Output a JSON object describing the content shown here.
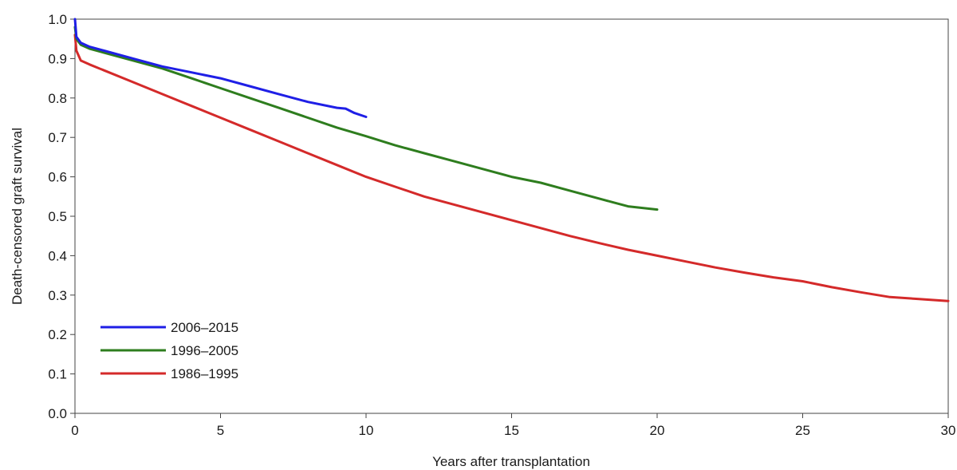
{
  "chart_data": {
    "type": "line",
    "title": "",
    "xlabel": "Years after transplantation",
    "ylabel": "Death-censored graft survival",
    "xlim": [
      0,
      30
    ],
    "ylim": [
      0.0,
      1.0
    ],
    "x_ticks": [
      0,
      5,
      10,
      15,
      20,
      25,
      30
    ],
    "x_tick_labels": [
      "0",
      "5",
      "10",
      "15",
      "20",
      "25",
      "30"
    ],
    "y_ticks": [
      0.0,
      0.1,
      0.2,
      0.3,
      0.4,
      0.5,
      0.6,
      0.7,
      0.8,
      0.9,
      1.0
    ],
    "y_tick_labels": [
      "0.0",
      "0.1",
      "0.2",
      "0.3",
      "0.4",
      "0.5",
      "0.6",
      "0.7",
      "0.8",
      "0.9",
      "1.0"
    ],
    "grid": false,
    "legend_position": "bottom-left",
    "series": [
      {
        "name": "2006–2015",
        "color": "#1f1fe6",
        "x": [
          0,
          0.05,
          0.2,
          0.5,
          1,
          2,
          3,
          4,
          5,
          6,
          7,
          8,
          9,
          9.3,
          9.6,
          10
        ],
        "y": [
          1.0,
          0.955,
          0.94,
          0.93,
          0.92,
          0.9,
          0.88,
          0.865,
          0.85,
          0.83,
          0.81,
          0.79,
          0.775,
          0.773,
          0.762,
          0.752
        ]
      },
      {
        "name": "1996–2005",
        "color": "#2e7d1e",
        "x": [
          0,
          0.05,
          0.2,
          0.5,
          1,
          2,
          3,
          4,
          5,
          6,
          7,
          8,
          9,
          10,
          11,
          12,
          13,
          14,
          15,
          16,
          17,
          18,
          19,
          20
        ],
        "y": [
          0.98,
          0.95,
          0.935,
          0.925,
          0.915,
          0.895,
          0.875,
          0.85,
          0.825,
          0.8,
          0.775,
          0.75,
          0.725,
          0.703,
          0.68,
          0.66,
          0.64,
          0.62,
          0.6,
          0.585,
          0.565,
          0.545,
          0.525,
          0.517
        ]
      },
      {
        "name": "1986–1995",
        "color": "#d42a2a",
        "x": [
          0,
          0.05,
          0.2,
          0.5,
          1,
          2,
          3,
          4,
          5,
          6,
          7,
          8,
          9,
          10,
          11,
          12,
          13,
          14,
          15,
          16,
          17,
          18,
          19,
          20,
          21,
          22,
          23,
          24,
          25,
          26,
          27,
          28,
          29,
          30
        ],
        "y": [
          0.96,
          0.92,
          0.895,
          0.885,
          0.87,
          0.84,
          0.81,
          0.78,
          0.75,
          0.72,
          0.69,
          0.66,
          0.63,
          0.6,
          0.575,
          0.55,
          0.53,
          0.51,
          0.49,
          0.47,
          0.45,
          0.432,
          0.415,
          0.4,
          0.385,
          0.37,
          0.357,
          0.345,
          0.335,
          0.32,
          0.307,
          0.295,
          0.29,
          0.285
        ]
      }
    ]
  }
}
